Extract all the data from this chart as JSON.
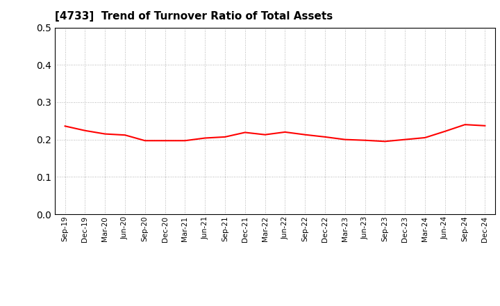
{
  "title": "[4733]  Trend of Turnover Ratio of Total Assets",
  "line_color": "#FF0000",
  "line_width": 1.5,
  "background_color": "#FFFFFF",
  "grid_color": "#999999",
  "ylim": [
    0.0,
    0.5
  ],
  "yticks": [
    0.0,
    0.1,
    0.2,
    0.3,
    0.4,
    0.5
  ],
  "labels": [
    "Sep-19",
    "Dec-19",
    "Mar-20",
    "Jun-20",
    "Sep-20",
    "Dec-20",
    "Mar-21",
    "Jun-21",
    "Sep-21",
    "Dec-21",
    "Mar-22",
    "Jun-22",
    "Sep-22",
    "Dec-22",
    "Mar-23",
    "Jun-23",
    "Sep-23",
    "Dec-23",
    "Mar-24",
    "Jun-24",
    "Sep-24",
    "Dec-24"
  ],
  "values": [
    0.236,
    0.224,
    0.215,
    0.212,
    0.197,
    0.197,
    0.197,
    0.204,
    0.207,
    0.219,
    0.213,
    0.22,
    0.213,
    0.207,
    0.2,
    0.198,
    0.195,
    0.2,
    0.205,
    0.222,
    0.24,
    0.237
  ]
}
